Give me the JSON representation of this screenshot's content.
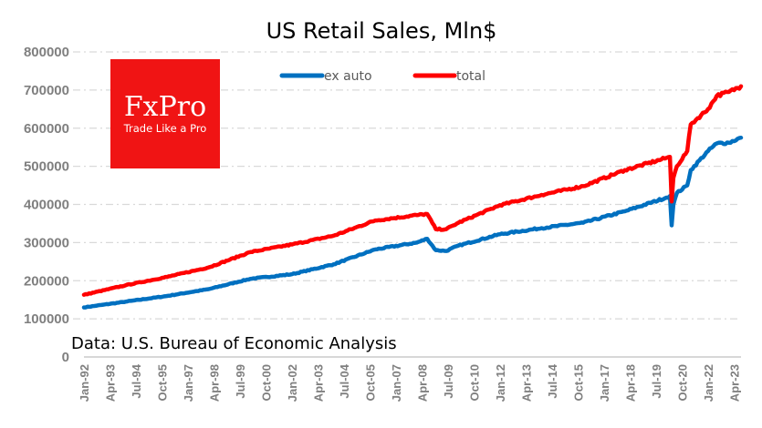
{
  "chart_data": {
    "type": "line",
    "title": "US Retail Sales, Mln$",
    "xlabel": "",
    "ylabel": "",
    "ylim": [
      0,
      800000
    ],
    "yticks": [
      0,
      100000,
      200000,
      300000,
      400000,
      500000,
      600000,
      700000,
      800000
    ],
    "ytick_labels": [
      "0",
      "100000",
      "200000",
      "300000",
      "400000",
      "500000",
      "600000",
      "700000",
      "800000"
    ],
    "x_start": "Jan-92",
    "x_end": "Aug-23",
    "xtick_labels": [
      "Jan-92",
      "Apr-93",
      "Jul-94",
      "Oct-95",
      "Jan-97",
      "Apr-98",
      "Jul-99",
      "Oct-00",
      "Jan-02",
      "Apr-03",
      "Jul-04",
      "Oct-05",
      "Jan-07",
      "Apr-08",
      "Jul-09",
      "Oct-10",
      "Jan-12",
      "Apr-13",
      "Jul-14",
      "Oct-15",
      "Jan-17",
      "Apr-18",
      "Jul-19",
      "Oct-20",
      "Jan-22",
      "Apr-23"
    ],
    "grid": true,
    "legend_position": "top-center",
    "series": [
      {
        "name": "ex auto",
        "color": "#0070C0",
        "anchor_months": [
          "Jan-92",
          "Jan-94",
          "Jan-96",
          "Jan-98",
          "Jan-00",
          "Jan-02",
          "Jan-04",
          "Jan-06",
          "Jan-08",
          "Jul-08",
          "Dec-08",
          "Jun-09",
          "Jan-10",
          "Jan-12",
          "Jan-14",
          "Jan-16",
          "Jan-18",
          "Jan-20",
          "Mar-20",
          "Apr-20",
          "May-20",
          "Jul-20",
          "Jan-21",
          "Mar-21",
          "Jan-22",
          "Jun-22",
          "Jan-23",
          "Aug-23"
        ],
        "anchor_values": [
          130000,
          145000,
          160000,
          178000,
          205000,
          217000,
          243000,
          282000,
          300000,
          310000,
          280000,
          278000,
          292000,
          322000,
          338000,
          352000,
          382000,
          418000,
          422000,
          345000,
          400000,
          430000,
          450000,
          490000,
          540000,
          560000,
          562000,
          575000
        ]
      },
      {
        "name": "total",
        "color": "#FF0000",
        "anchor_months": [
          "Jan-92",
          "Jan-94",
          "Jan-96",
          "Jan-98",
          "Jan-00",
          "Jan-02",
          "Jan-04",
          "Jan-06",
          "Jan-08",
          "Jul-08",
          "Dec-08",
          "Jun-09",
          "Jan-10",
          "Jan-12",
          "Jan-14",
          "Jan-16",
          "Jan-18",
          "Jan-20",
          "Mar-20",
          "Apr-20",
          "May-20",
          "Jul-20",
          "Jan-21",
          "Mar-21",
          "Jan-22",
          "Jun-22",
          "Jan-23",
          "Aug-23"
        ],
        "anchor_values": [
          163000,
          188000,
          210000,
          235000,
          275000,
          295000,
          318000,
          358000,
          372000,
          375000,
          335000,
          335000,
          352000,
          398000,
          425000,
          448000,
          490000,
          522000,
          525000,
          408000,
          470000,
          500000,
          540000,
          610000,
          650000,
          685000,
          695000,
          710000
        ]
      }
    ]
  },
  "legend": {
    "items": [
      {
        "label": "ex auto",
        "color": "#0070C0"
      },
      {
        "label": "total",
        "color": "#FF0000"
      }
    ]
  },
  "logo": {
    "brand": "FxPro",
    "tagline": "Trade Like a Pro",
    "color": "#F01414"
  },
  "source_note": "Data: U.S. Bureau of Economic Analysis"
}
